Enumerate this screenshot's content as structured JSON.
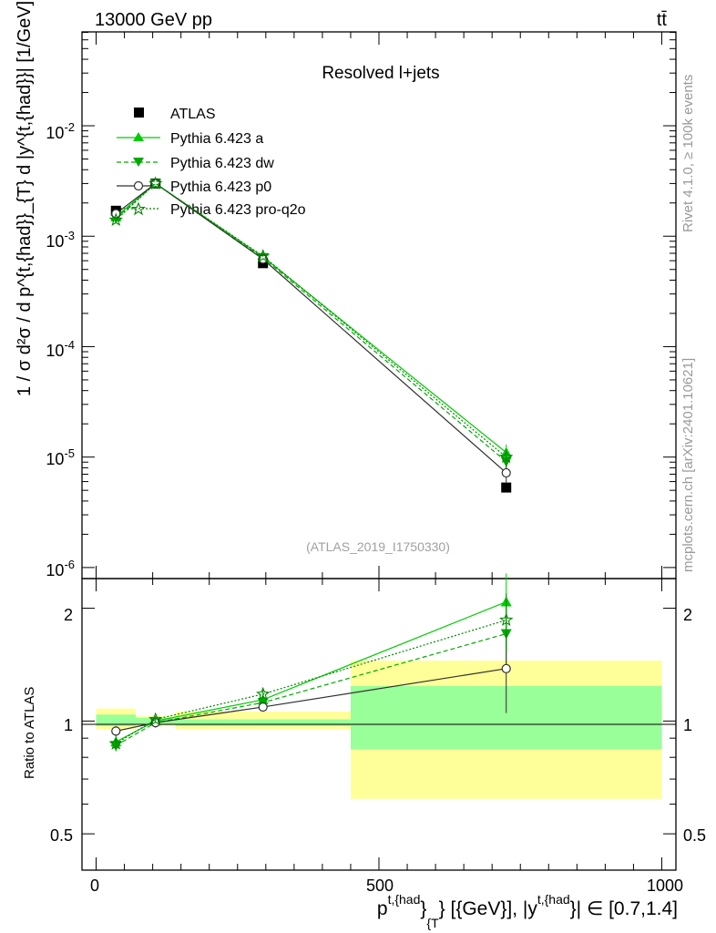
{
  "header": {
    "energy_label": "13000 GeV pp",
    "process_label": "tt̄"
  },
  "side_labels": {
    "rivet": "Rivet 4.1.0, ≥ 100k events",
    "mcplots": "mcplots.cern.ch [arXiv:2401.10621]"
  },
  "chart_data": {
    "type": "line",
    "title": "Resolved l+jets",
    "watermark": "(ATLAS_2019_I1750330)",
    "xlabel_parts": {
      "p": "p",
      "sup1": "t,{had",
      "bracket": "}",
      "sub": "{T",
      "mid": "} [{GeV}], |y",
      "sup2": "t,{had",
      "end": "}| ∈ [0.7,1.4]"
    },
    "ylabel": "1 / σ d²σ / d p^{t,{had}}_{T} d |y^{t,{had}}| [1/GeV]",
    "ratio_ylabel": "Ratio to ATLAS",
    "x_ticks": [
      "0",
      "500",
      "1000"
    ],
    "y_ticks": [
      "10",
      "10",
      "10",
      "10",
      "10"
    ],
    "y_tick_exponents": [
      "-2",
      "-3",
      "-4",
      "-5",
      "-6"
    ],
    "ratio_ticks": [
      "0.5",
      "1",
      "2"
    ],
    "xlim": [
      -25,
      1025
    ],
    "ylim_log10": [
      -6.1,
      -1.15
    ],
    "ratio_ylim": [
      0.4,
      2.4
    ],
    "bins": [
      [
        0,
        70
      ],
      [
        70,
        140
      ],
      [
        140,
        450
      ],
      [
        450,
        1000
      ]
    ],
    "x": [
      35,
      105,
      295,
      725
    ],
    "series": [
      {
        "name": "ATLAS",
        "values": [
          0.0017,
          0.003,
          0.00057,
          5.3e-06
        ],
        "ratio": [
          1.0,
          1.0,
          1.0,
          1.0
        ]
      },
      {
        "name": "Pythia 6.423 a",
        "values": [
          0.0015,
          0.003,
          0.00065,
          1.1e-05
        ],
        "ratio": [
          0.88,
          1.0,
          1.14,
          2.08
        ]
      },
      {
        "name": "Pythia 6.423 dw",
        "values": [
          0.00145,
          0.003,
          0.00064,
          9.1e-06
        ],
        "ratio": [
          0.86,
          0.99,
          1.12,
          1.71
        ]
      },
      {
        "name": "Pythia 6.423 p0",
        "values": [
          0.0016,
          0.003,
          0.00062,
          7.2e-06
        ],
        "ratio": [
          0.94,
          0.99,
          1.09,
          1.38
        ]
      },
      {
        "name": "Pythia 6.423 pro-q2o",
        "values": [
          0.0014,
          0.003,
          0.00066,
          1e-05
        ],
        "ratio": [
          0.87,
          1.01,
          1.18,
          1.86
        ]
      }
    ],
    "band_stat": [
      [
        0.97,
        1.04
      ],
      [
        0.98,
        1.02
      ],
      [
        0.97,
        1.01
      ],
      [
        0.84,
        1.24
      ]
    ],
    "band_total": [
      [
        0.95,
        1.08
      ],
      [
        0.97,
        1.03
      ],
      [
        0.95,
        1.06
      ],
      [
        0.62,
        1.45
      ]
    ],
    "legend_position": "top-left",
    "colors": {
      "a": "#00cc00",
      "dw": "#00aa00",
      "p0": "#303030",
      "pro": "#008800",
      "stat": "#99ff99",
      "total": "#ffff99"
    }
  }
}
